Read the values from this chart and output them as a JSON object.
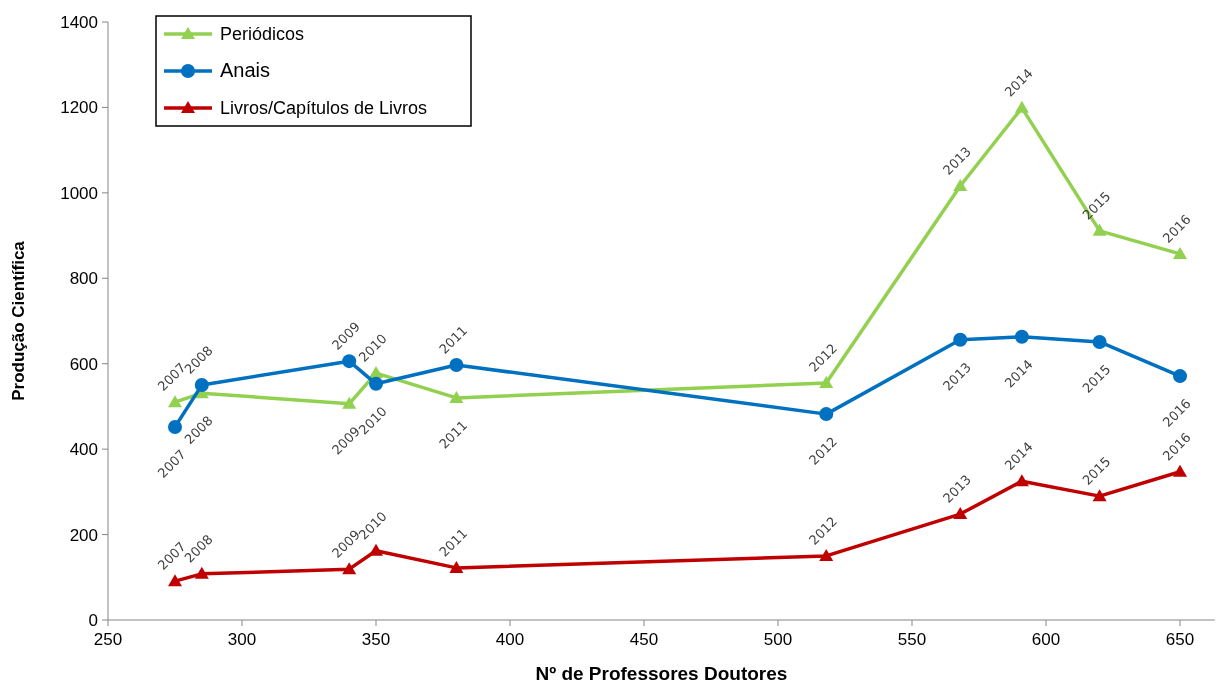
{
  "chart_data": {
    "type": "line",
    "xlabel": "Nº de Professores Doutores",
    "ylabel": "Produção Científica",
    "x": [
      275,
      285,
      340,
      350,
      380,
      518,
      568,
      591,
      620,
      650
    ],
    "xlim": [
      250,
      663
    ],
    "xticks": [
      250,
      300,
      350,
      400,
      450,
      500,
      550,
      600,
      650
    ],
    "ylim": [
      0,
      1400
    ],
    "yticks": [
      0,
      200,
      400,
      600,
      800,
      1000,
      1200,
      1400
    ],
    "legend": "top left",
    "grid": false,
    "line_style": "solid",
    "series": [
      {
        "name": "Periódicos",
        "color": "#92d050",
        "marker": "triangle",
        "values": [
          510,
          531,
          506,
          578,
          520,
          555,
          1016,
          1199,
          911,
          857
        ]
      },
      {
        "name": "Anais",
        "color": "#0070c0",
        "marker": "circle",
        "values": [
          452,
          550,
          606,
          553,
          597,
          482,
          656,
          663,
          651,
          571
        ]
      },
      {
        "name": "Livros/Capítulos de Livros",
        "color": "#c00000",
        "marker": "triangle",
        "values": [
          91,
          108,
          119,
          162,
          122,
          150,
          248,
          325,
          290,
          347
        ]
      }
    ],
    "annotations": [
      {
        "text": "2007",
        "x": 275,
        "y": 510
      },
      {
        "text": "2008",
        "x": 285,
        "y": 531
      },
      {
        "text": "2009",
        "x": 340,
        "y": 506
      },
      {
        "text": "2010",
        "x": 350,
        "y": 578
      },
      {
        "text": "2011",
        "x": 380,
        "y": 520
      },
      {
        "text": "2012",
        "x": 518,
        "y": 555
      },
      {
        "text": "2013",
        "x": 568,
        "y": 1016
      },
      {
        "text": "2014",
        "x": 591,
        "y": 1199
      },
      {
        "text": "2015",
        "x": 620,
        "y": 911
      },
      {
        "text": "2016",
        "x": 650,
        "y": 857
      },
      {
        "text": "2007",
        "x": 275,
        "y": 452
      },
      {
        "text": "2008",
        "x": 285,
        "y": 550
      },
      {
        "text": "2009",
        "x": 340,
        "y": 606
      },
      {
        "text": "2010",
        "x": 350,
        "y": 553
      },
      {
        "text": "2011",
        "x": 380,
        "y": 597
      },
      {
        "text": "2012",
        "x": 518,
        "y": 482
      },
      {
        "text": "2013",
        "x": 568,
        "y": 656
      },
      {
        "text": "2014",
        "x": 591,
        "y": 663
      },
      {
        "text": "2015",
        "x": 620,
        "y": 651
      },
      {
        "text": "2016",
        "x": 650,
        "y": 571
      },
      {
        "text": "2007",
        "x": 275,
        "y": 91
      },
      {
        "text": "2008",
        "x": 285,
        "y": 108
      },
      {
        "text": "2009",
        "x": 340,
        "y": 119
      },
      {
        "text": "2010",
        "x": 350,
        "y": 162
      },
      {
        "text": "2011",
        "x": 380,
        "y": 122
      },
      {
        "text": "2012",
        "x": 518,
        "y": 150
      },
      {
        "text": "2013",
        "x": 568,
        "y": 248
      },
      {
        "text": "2014",
        "x": 591,
        "y": 325
      },
      {
        "text": "2015",
        "x": 620,
        "y": 290
      },
      {
        "text": "2016",
        "x": 650,
        "y": 347
      }
    ]
  }
}
